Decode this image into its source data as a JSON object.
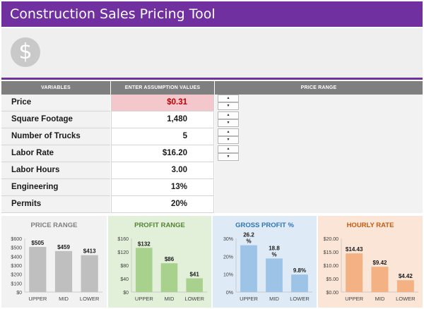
{
  "header": {
    "title": "Construction Sales Pricing Tool"
  },
  "logo": {
    "icon": "dollar-icon",
    "glyph": "$"
  },
  "table": {
    "headers": {
      "variables": "VARIABLES",
      "values": "ENTER ASSUMPTION VALUES",
      "range": "PRICE RANGE"
    },
    "rows": [
      {
        "label": "Price",
        "value": "$0.31"
      },
      {
        "label": "Square Footage",
        "value": "1,480"
      },
      {
        "label": "Number of Trucks",
        "value": "5"
      },
      {
        "label": "Labor Rate",
        "value": "$16.20"
      },
      {
        "label": "Labor Hours",
        "value": "3.00"
      },
      {
        "label": "Engineering",
        "value": "13%"
      },
      {
        "label": "Permits",
        "value": "20%"
      }
    ],
    "spinner": {
      "up": "▲",
      "down": "▼"
    },
    "price_color": "#c00000"
  },
  "chart_data": [
    {
      "type": "bar",
      "title": "PRICE RANGE",
      "categories": [
        "UPPER",
        "MID",
        "LOWER"
      ],
      "values": [
        505,
        459,
        413
      ],
      "labels": [
        "$505",
        "$459",
        "$413"
      ],
      "yticks": [
        "$600",
        "$500",
        "$400",
        "$300",
        "$200",
        "$100",
        "$0"
      ],
      "ylim": [
        0,
        600
      ],
      "bar_color": "#bfbfbf",
      "bg_color": "#f2f2f2",
      "title_color": "#7f7f7f"
    },
    {
      "type": "bar",
      "title": "PROFIT RANGE",
      "categories": [
        "UPPER",
        "MID",
        "LOWER"
      ],
      "values": [
        132,
        86,
        41
      ],
      "labels": [
        "$132",
        "$86",
        "$41"
      ],
      "yticks": [
        "$160",
        "$120",
        "$80",
        "$40",
        "$0"
      ],
      "ylim": [
        0,
        160
      ],
      "bar_color": "#a9d18e",
      "bg_color": "#e2efd9",
      "title_color": "#548235"
    },
    {
      "type": "bar",
      "title": "GROSS PROFIT %",
      "categories": [
        "UPPER",
        "MID",
        "LOWER"
      ],
      "values": [
        26.2,
        18.8,
        9.8
      ],
      "labels": [
        "26.2 %",
        "18.8 %",
        "9.8%"
      ],
      "yticks": [
        "30%",
        "20%",
        "10%",
        "0%"
      ],
      "ylim": [
        0,
        30
      ],
      "bar_color": "#9dc3e6",
      "bg_color": "#deebf7",
      "title_color": "#2e75b6"
    },
    {
      "type": "bar",
      "title": "HOURLY RATE",
      "categories": [
        "UPPER",
        "MID",
        "LOWER"
      ],
      "values": [
        14.43,
        9.42,
        4.42
      ],
      "labels": [
        "$14.43",
        "$9.42",
        "$4.42"
      ],
      "yticks": [
        "$20.00",
        "$15.00",
        "$10.00",
        "$5.00",
        "$0.00"
      ],
      "ylim": [
        0,
        20
      ],
      "bar_color": "#f4b183",
      "bg_color": "#fbe5d6",
      "title_color": "#c55a11"
    }
  ]
}
